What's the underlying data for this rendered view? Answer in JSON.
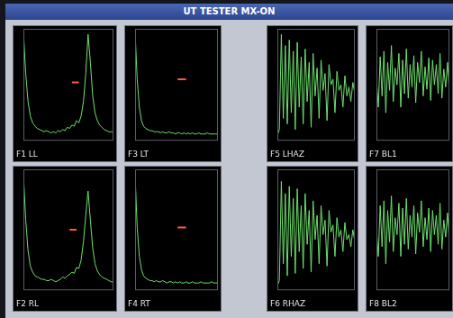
{
  "header": "UT TESTER MX-ON",
  "chart_data": [
    {
      "type": "line",
      "title": "F1 LL",
      "color": "#6fe06f",
      "grid": false,
      "tick_labels": false,
      "xlim": [
        0,
        39
      ],
      "ylim": [
        0,
        100
      ],
      "x": [
        0,
        1,
        2,
        3,
        4,
        5,
        6,
        7,
        8,
        9,
        10,
        11,
        12,
        13,
        14,
        15,
        16,
        17,
        18,
        19,
        20,
        21,
        22,
        23,
        24,
        25,
        26,
        27,
        28,
        29,
        30,
        31,
        32,
        33,
        34,
        35,
        36,
        37,
        38,
        39
      ],
      "values": [
        98,
        60,
        35,
        22,
        16,
        13,
        11,
        10,
        9,
        8,
        9,
        8,
        7,
        8,
        7,
        9,
        8,
        10,
        9,
        12,
        11,
        14,
        13,
        18,
        16,
        22,
        35,
        60,
        95,
        70,
        40,
        25,
        18,
        14,
        12,
        10,
        9,
        8,
        8,
        7
      ],
      "gate": {
        "x": [
          21,
          24
        ],
        "y": 52
      }
    },
    {
      "type": "line",
      "title": "F2 RL",
      "color": "#6fe06f",
      "grid": false,
      "tick_labels": false,
      "xlim": [
        0,
        39
      ],
      "ylim": [
        0,
        100
      ],
      "x": [
        0,
        1,
        2,
        3,
        4,
        5,
        6,
        7,
        8,
        9,
        10,
        11,
        12,
        13,
        14,
        15,
        16,
        17,
        18,
        19,
        20,
        21,
        22,
        23,
        24,
        25,
        26,
        27,
        28,
        29,
        30,
        31,
        32,
        33,
        34,
        35,
        36,
        37,
        38,
        39
      ],
      "values": [
        96,
        58,
        33,
        20,
        15,
        12,
        11,
        10,
        9,
        9,
        8,
        8,
        9,
        8,
        7,
        8,
        9,
        11,
        10,
        12,
        13,
        15,
        14,
        19,
        18,
        25,
        40,
        62,
        82,
        58,
        35,
        22,
        16,
        13,
        11,
        10,
        9,
        8,
        7,
        7
      ],
      "gate": {
        "x": [
          20,
          23
        ],
        "y": 50
      }
    },
    {
      "type": "line",
      "title": "F3 LT",
      "color": "#6fe06f",
      "grid": false,
      "tick_labels": false,
      "xlim": [
        0,
        39
      ],
      "ylim": [
        0,
        100
      ],
      "x": [
        0,
        1,
        2,
        3,
        4,
        5,
        6,
        7,
        8,
        9,
        10,
        11,
        12,
        13,
        14,
        15,
        16,
        17,
        18,
        19,
        20,
        21,
        22,
        23,
        24,
        25,
        26,
        27,
        28,
        29,
        30,
        31,
        32,
        33,
        34,
        35,
        36,
        37,
        38,
        39
      ],
      "values": [
        97,
        55,
        30,
        18,
        13,
        11,
        10,
        9,
        9,
        8,
        8,
        8,
        7,
        8,
        7,
        7,
        8,
        7,
        7,
        6,
        7,
        7,
        6,
        7,
        6,
        7,
        6,
        7,
        6,
        6,
        7,
        6,
        6,
        6,
        7,
        6,
        6,
        6,
        6,
        6
      ],
      "gate": {
        "x": [
          20,
          24
        ],
        "y": 55
      }
    },
    {
      "type": "line",
      "title": "F4 RT",
      "color": "#6fe06f",
      "grid": false,
      "tick_labels": false,
      "xlim": [
        0,
        39
      ],
      "ylim": [
        0,
        100
      ],
      "x": [
        0,
        1,
        2,
        3,
        4,
        5,
        6,
        7,
        8,
        9,
        10,
        11,
        12,
        13,
        14,
        15,
        16,
        17,
        18,
        19,
        20,
        21,
        22,
        23,
        24,
        25,
        26,
        27,
        28,
        29,
        30,
        31,
        32,
        33,
        34,
        35,
        36,
        37,
        38,
        39
      ],
      "values": [
        95,
        52,
        28,
        17,
        12,
        10,
        9,
        8,
        8,
        7,
        8,
        7,
        7,
        8,
        7,
        6,
        7,
        7,
        6,
        7,
        6,
        7,
        6,
        6,
        7,
        6,
        6,
        7,
        6,
        6,
        6,
        7,
        6,
        6,
        6,
        6,
        7,
        6,
        6,
        6
      ],
      "gate": {
        "x": [
          20,
          24
        ],
        "y": 52
      }
    },
    {
      "type": "line",
      "title": "F5 LHAZ",
      "color": "#6fe06f",
      "grid": false,
      "tick_labels": false,
      "xlim": [
        0,
        39
      ],
      "ylim": [
        0,
        100
      ],
      "x": [
        0,
        1,
        2,
        3,
        4,
        5,
        6,
        7,
        8,
        9,
        10,
        11,
        12,
        13,
        14,
        15,
        16,
        17,
        18,
        19,
        20,
        21,
        22,
        23,
        24,
        25,
        26,
        27,
        28,
        29,
        30,
        31,
        32,
        33,
        34,
        35,
        36,
        37,
        38,
        39
      ],
      "values": [
        5,
        10,
        95,
        20,
        85,
        15,
        90,
        25,
        80,
        10,
        88,
        30,
        75,
        15,
        82,
        35,
        70,
        12,
        78,
        40,
        65,
        20,
        72,
        45,
        60,
        18,
        68,
        50,
        55,
        25,
        62,
        45,
        50,
        30,
        58,
        40,
        48,
        35,
        52,
        42
      ]
    },
    {
      "type": "line",
      "title": "F6 RHAZ",
      "color": "#6fe06f",
      "grid": false,
      "tick_labels": false,
      "xlim": [
        0,
        39
      ],
      "ylim": [
        0,
        100
      ],
      "x": [
        0,
        1,
        2,
        3,
        4,
        5,
        6,
        7,
        8,
        9,
        10,
        11,
        12,
        13,
        14,
        15,
        16,
        17,
        18,
        19,
        20,
        21,
        22,
        23,
        24,
        25,
        26,
        27,
        28,
        29,
        30,
        31,
        32,
        33,
        34,
        35,
        36,
        37,
        38,
        39
      ],
      "values": [
        4,
        8,
        90,
        22,
        80,
        12,
        86,
        28,
        76,
        14,
        84,
        32,
        70,
        18,
        80,
        38,
        66,
        15,
        74,
        42,
        62,
        22,
        70,
        46,
        58,
        20,
        66,
        48,
        54,
        28,
        60,
        44,
        50,
        32,
        56,
        42,
        46,
        36,
        50,
        40
      ]
    },
    {
      "type": "line",
      "title": "F7 BL1",
      "color": "#6fe06f",
      "grid": false,
      "tick_labels": false,
      "xlim": [
        0,
        39
      ],
      "ylim": [
        0,
        100
      ],
      "x": [
        0,
        1,
        2,
        3,
        4,
        5,
        6,
        7,
        8,
        9,
        10,
        11,
        12,
        13,
        14,
        15,
        16,
        17,
        18,
        19,
        20,
        21,
        22,
        23,
        24,
        25,
        26,
        27,
        28,
        29,
        30,
        31,
        32,
        33,
        34,
        35,
        36,
        37,
        38,
        39
      ],
      "values": [
        55,
        30,
        75,
        40,
        80,
        25,
        70,
        45,
        85,
        35,
        65,
        50,
        78,
        30,
        72,
        42,
        82,
        38,
        68,
        48,
        76,
        34,
        70,
        52,
        80,
        40,
        66,
        46,
        74,
        36,
        72,
        50,
        68,
        42,
        78,
        38,
        64,
        48,
        70,
        44
      ]
    },
    {
      "type": "line",
      "title": "F8 BL2",
      "color": "#6fe06f",
      "grid": false,
      "tick_labels": false,
      "xlim": [
        0,
        39
      ],
      "ylim": [
        0,
        100
      ],
      "x": [
        0,
        1,
        2,
        3,
        4,
        5,
        6,
        7,
        8,
        9,
        10,
        11,
        12,
        13,
        14,
        15,
        16,
        17,
        18,
        19,
        20,
        21,
        22,
        23,
        24,
        25,
        26,
        27,
        28,
        29,
        30,
        31,
        32,
        33,
        34,
        35,
        36,
        37,
        38,
        39
      ],
      "values": [
        50,
        28,
        70,
        36,
        74,
        22,
        66,
        40,
        78,
        32,
        60,
        46,
        72,
        28,
        68,
        38,
        76,
        34,
        62,
        44,
        70,
        30,
        64,
        48,
        74,
        36,
        60,
        42,
        68,
        32,
        66,
        46,
        62,
        38,
        72,
        34,
        58,
        44,
        64,
        40
      ]
    }
  ]
}
